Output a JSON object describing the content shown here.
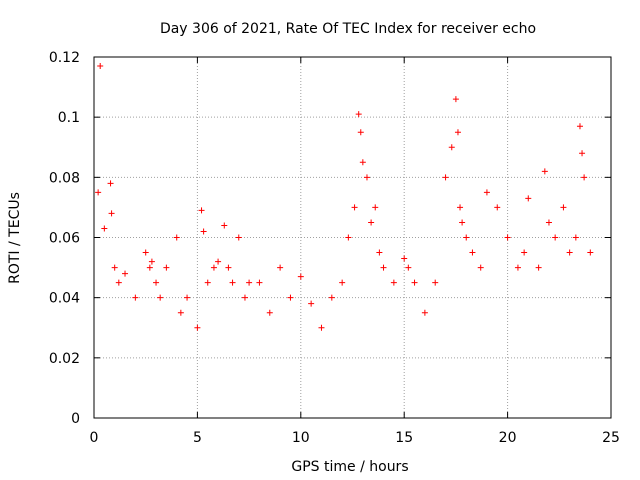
{
  "chart_data": {
    "type": "scatter",
    "title": "Day 306 of 2021, Rate Of TEC Index for receiver echo",
    "xlabel": "GPS time / hours",
    "ylabel": "ROTI / TECUs",
    "xlim": [
      0,
      25
    ],
    "ylim": [
      0,
      0.12
    ],
    "xticks": [
      "0",
      "5",
      "10",
      "15",
      "20",
      "25"
    ],
    "yticks": [
      "0",
      "0.02",
      "0.04",
      "0.06",
      "0.08",
      "0.1",
      "0.12"
    ],
    "xtick_values": [
      0,
      5,
      10,
      15,
      20,
      25
    ],
    "ytick_values": [
      0,
      0.02,
      0.04,
      0.06,
      0.08,
      0.1,
      0.12
    ],
    "grid": true,
    "marker": "+",
    "series_color": "#ff0000",
    "series": [
      {
        "x": [
          0.3,
          0.2,
          0.5,
          0.8,
          0.85,
          1.0,
          1.2,
          1.5,
          2.0,
          2.5,
          2.7,
          2.8,
          3.0,
          3.2,
          3.5,
          4.0,
          4.2,
          4.5,
          5.0,
          5.2,
          5.3,
          5.5,
          5.8,
          6.0,
          6.3,
          6.5,
          6.7,
          7.0,
          7.3,
          7.5,
          8.0,
          8.5,
          9.0,
          9.5,
          10.0,
          10.5,
          11.0,
          11.5,
          12.0,
          12.3,
          12.6,
          12.8,
          12.9,
          13.0,
          13.2,
          13.4,
          13.6,
          13.8,
          14.0,
          14.5,
          15.0,
          15.2,
          15.5,
          16.0,
          16.5,
          17.0,
          17.3,
          17.5,
          17.6,
          17.7,
          17.8,
          18.0,
          18.3,
          18.7,
          19.0,
          19.5,
          20.0,
          20.5,
          20.8,
          21.0,
          21.5,
          21.8,
          22.0,
          22.3,
          22.7,
          23.0,
          23.3,
          23.5,
          23.6,
          23.7,
          24.0
        ],
        "y": [
          0.117,
          0.075,
          0.063,
          0.078,
          0.068,
          0.05,
          0.045,
          0.048,
          0.04,
          0.055,
          0.05,
          0.052,
          0.045,
          0.04,
          0.05,
          0.06,
          0.035,
          0.04,
          0.03,
          0.069,
          0.062,
          0.045,
          0.05,
          0.052,
          0.064,
          0.05,
          0.045,
          0.06,
          0.04,
          0.045,
          0.045,
          0.035,
          0.05,
          0.04,
          0.047,
          0.038,
          0.03,
          0.04,
          0.045,
          0.06,
          0.07,
          0.101,
          0.095,
          0.085,
          0.08,
          0.065,
          0.07,
          0.055,
          0.05,
          0.045,
          0.053,
          0.05,
          0.045,
          0.035,
          0.045,
          0.08,
          0.09,
          0.106,
          0.095,
          0.07,
          0.065,
          0.06,
          0.055,
          0.05,
          0.075,
          0.07,
          0.06,
          0.05,
          0.055,
          0.073,
          0.05,
          0.082,
          0.065,
          0.06,
          0.07,
          0.055,
          0.06,
          0.097,
          0.088,
          0.08,
          0.055
        ]
      }
    ]
  }
}
